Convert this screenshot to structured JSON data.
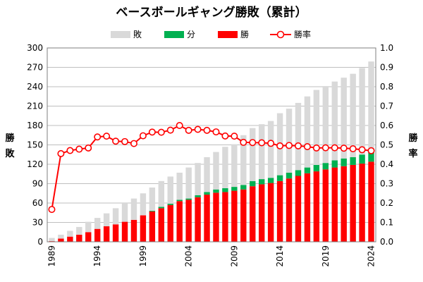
{
  "chart_data": {
    "type": "bar",
    "title": "ベースボールギャング勝敗（累計）",
    "left_axis_label": [
      "勝",
      "敗"
    ],
    "right_axis_label": [
      "勝",
      "率"
    ],
    "left_ylim": [
      0,
      300
    ],
    "left_ticks": [
      "0",
      "30",
      "60",
      "90",
      "120",
      "150",
      "180",
      "210",
      "240",
      "270",
      "300"
    ],
    "right_ylim": [
      0,
      1.0
    ],
    "right_ticks": [
      "0.0",
      "0.1",
      "0.2",
      "0.3",
      "0.4",
      "0.5",
      "0.6",
      "0.7",
      "0.8",
      "0.9",
      "1.0"
    ],
    "x_tick_labels": [
      "1989",
      "1994",
      "1999",
      "2004",
      "2009",
      "2014",
      "2019",
      "2024"
    ],
    "grid": "horizontal",
    "stacked": true,
    "colors": {
      "loss": "#d9d9d9",
      "draw": "#00b050",
      "win": "#ff0000",
      "rate": "#ff0000"
    },
    "legend": [
      "敗",
      "分",
      "勝",
      "勝率"
    ],
    "categories": [
      1989,
      1990,
      1991,
      1992,
      1993,
      1994,
      1995,
      1996,
      1997,
      1998,
      1999,
      2000,
      2001,
      2002,
      2003,
      2004,
      2005,
      2006,
      2007,
      2008,
      2009,
      2010,
      2011,
      2012,
      2013,
      2014,
      2015,
      2016,
      2017,
      2018,
      2019,
      2020,
      2021,
      2022,
      2023,
      2024
    ],
    "series": [
      {
        "name": "勝",
        "values": [
          1,
          5,
          8,
          11,
          15,
          20,
          24,
          27,
          31,
          34,
          41,
          47,
          52,
          57,
          63,
          65,
          69,
          73,
          76,
          77,
          79,
          81,
          86,
          89,
          91,
          94,
          98,
          102,
          106,
          109,
          112,
          115,
          117,
          119,
          121,
          124
        ]
      },
      {
        "name": "分",
        "values": [
          0,
          0,
          0,
          0,
          0,
          0,
          0,
          0,
          0,
          0,
          0,
          1,
          2,
          2,
          2,
          2,
          3,
          4,
          5,
          6,
          6,
          7,
          8,
          8,
          8,
          9,
          9,
          9,
          9,
          10,
          10,
          11,
          12,
          12,
          14,
          15
        ]
      },
      {
        "name": "敗",
        "values": [
          5,
          6,
          9,
          12,
          16,
          17,
          20,
          25,
          29,
          33,
          34,
          36,
          40,
          42,
          42,
          48,
          50,
          54,
          58,
          64,
          66,
          77,
          82,
          85,
          88,
          96,
          99,
          104,
          110,
          116,
          119,
          122,
          125,
          129,
          134,
          140
        ]
      }
    ],
    "rate": {
      "name": "勝率",
      "values": [
        0.167,
        0.455,
        0.471,
        0.478,
        0.484,
        0.541,
        0.545,
        0.519,
        0.517,
        0.507,
        0.547,
        0.566,
        0.565,
        0.576,
        0.6,
        0.575,
        0.58,
        0.575,
        0.567,
        0.546,
        0.545,
        0.513,
        0.512,
        0.511,
        0.508,
        0.495,
        0.497,
        0.495,
        0.491,
        0.484,
        0.485,
        0.485,
        0.483,
        0.48,
        0.475,
        0.47
      ]
    }
  }
}
